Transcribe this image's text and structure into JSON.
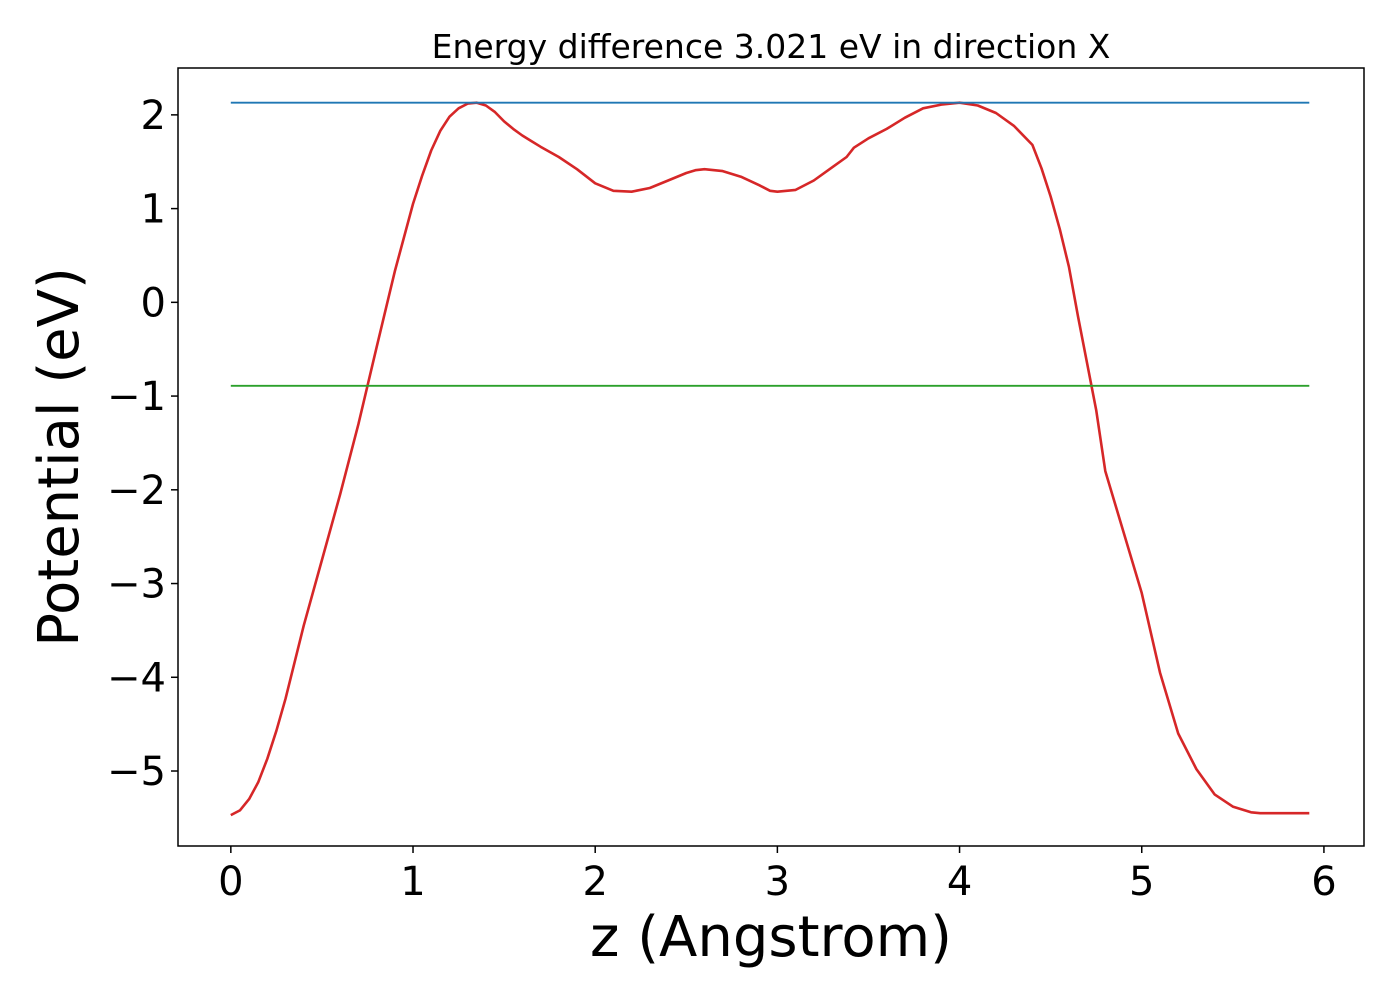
{
  "chart_data": {
    "type": "line",
    "title": "Energy difference 3.021 eV in direction X",
    "xlabel": "z (Angstrom)",
    "ylabel": "Potential (eV)",
    "xlim": [
      -0.29,
      6.22
    ],
    "ylim": [
      -5.8,
      2.5
    ],
    "xticks": [
      0,
      1,
      2,
      3,
      4,
      5,
      6
    ],
    "xtick_labels": [
      "0",
      "1",
      "2",
      "3",
      "4",
      "5",
      "6"
    ],
    "yticks": [
      2,
      1,
      0,
      -1,
      -2,
      -3,
      -4,
      -5
    ],
    "ytick_labels": [
      "2",
      "1",
      "0",
      "−1",
      "−2",
      "−3",
      "−4",
      "−5"
    ],
    "grid": false,
    "legend": "none",
    "series": [
      {
        "color": "#d62728",
        "x": [
          0,
          0.05,
          0.1,
          0.15,
          0.2,
          0.25,
          0.3,
          0.4,
          0.5,
          0.6,
          0.7,
          0.8,
          0.9,
          1.0,
          1.05,
          1.1,
          1.15,
          1.2,
          1.25,
          1.3,
          1.35,
          1.4,
          1.45,
          1.5,
          1.55,
          1.6,
          1.65,
          1.7,
          1.8,
          1.9,
          2.0,
          2.1,
          2.2,
          2.3,
          2.4,
          2.5,
          2.55,
          2.6,
          2.7,
          2.8,
          2.9,
          2.96,
          3.0,
          3.1,
          3.2,
          3.3,
          3.38,
          3.42,
          3.5,
          3.6,
          3.7,
          3.8,
          3.9,
          4.0,
          4.1,
          4.2,
          4.3,
          4.4,
          4.45,
          4.5,
          4.55,
          4.6,
          4.65,
          4.7,
          4.75,
          4.8,
          4.9,
          5.0,
          5.1,
          5.2,
          5.3,
          5.4,
          5.5,
          5.6,
          5.65,
          5.7,
          5.75,
          5.8,
          5.85,
          5.9,
          5.92
        ],
        "y": [
          -5.47,
          -5.42,
          -5.3,
          -5.12,
          -4.87,
          -4.57,
          -4.23,
          -3.45,
          -2.75,
          -2.05,
          -1.3,
          -0.48,
          0.33,
          1.05,
          1.35,
          1.62,
          1.83,
          1.98,
          2.07,
          2.12,
          2.13,
          2.1,
          2.03,
          1.93,
          1.85,
          1.78,
          1.72,
          1.66,
          1.55,
          1.42,
          1.27,
          1.19,
          1.18,
          1.22,
          1.3,
          1.38,
          1.41,
          1.42,
          1.4,
          1.34,
          1.25,
          1.19,
          1.18,
          1.2,
          1.3,
          1.44,
          1.55,
          1.65,
          1.75,
          1.85,
          1.97,
          2.07,
          2.11,
          2.13,
          2.1,
          2.02,
          1.88,
          1.68,
          1.43,
          1.13,
          0.78,
          0.38,
          -0.15,
          -0.65,
          -1.15,
          -1.8,
          -2.45,
          -3.1,
          -3.95,
          -4.6,
          -4.98,
          -5.25,
          -5.38,
          -5.44,
          -5.45,
          -5.45,
          -5.45,
          -5.45,
          -5.45,
          -5.45,
          -5.45
        ]
      },
      {
        "color": "#1f77b4",
        "x": [
          0,
          5.92
        ],
        "y": [
          2.13,
          2.13
        ]
      },
      {
        "color": "#2ca02c",
        "x": [
          0,
          5.92
        ],
        "y": [
          -0.89,
          -0.89
        ]
      }
    ]
  }
}
